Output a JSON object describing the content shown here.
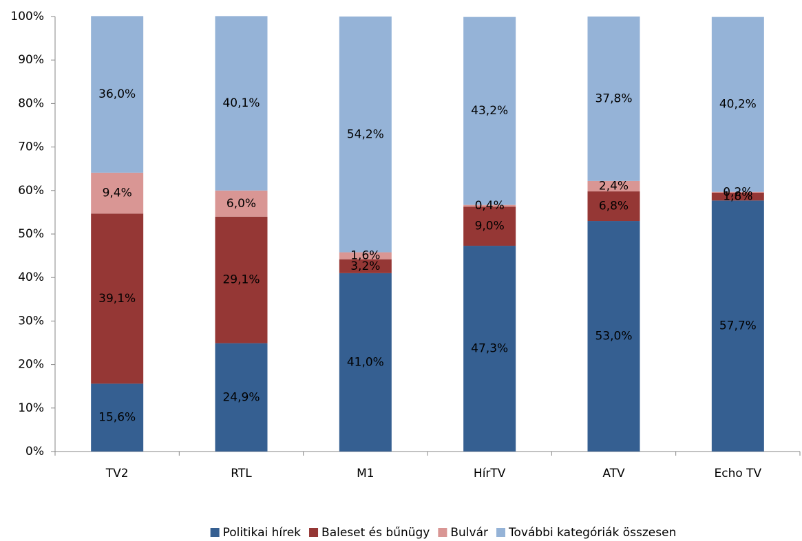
{
  "chart_data": {
    "type": "stacked_bar",
    "categories": [
      "TV2",
      "RTL",
      "M1",
      "HírTV",
      "ATV",
      "Echo TV"
    ],
    "series": [
      {
        "name": "Politikai hírek",
        "color": "#355f91",
        "values": [
          15.6,
          24.9,
          41.0,
          47.3,
          53.0,
          57.7
        ],
        "value_labels": [
          "15,6%",
          "24,9%",
          "41,0%",
          "47,3%",
          "53,0%",
          "57,7%"
        ]
      },
      {
        "name": "Baleset és bűnügy",
        "color": "#953735",
        "values": [
          39.1,
          29.1,
          3.2,
          9.0,
          6.8,
          1.8
        ],
        "value_labels": [
          "39,1%",
          "29,1%",
          "3,2%",
          "9,0%",
          "6,8%",
          "1,8%"
        ]
      },
      {
        "name": "Bulvár",
        "color": "#d99694",
        "values": [
          9.4,
          6.0,
          1.6,
          0.4,
          2.4,
          0.2
        ],
        "value_labels": [
          "9,4%",
          "6,0%",
          "1,6%",
          "0,4%",
          "2,4%",
          "0,2%"
        ]
      },
      {
        "name": "További kategóriák összesen",
        "color": "#95b3d7",
        "values": [
          36.0,
          40.1,
          54.2,
          43.2,
          37.8,
          40.2
        ],
        "value_labels": [
          "36,0%",
          "40,1%",
          "54,2%",
          "43,2%",
          "37,8%",
          "40,2%"
        ]
      }
    ],
    "ylim": [
      0,
      100
    ],
    "yticks": [
      {
        "value": 0,
        "label": "0%"
      },
      {
        "value": 10,
        "label": "10%"
      },
      {
        "value": 20,
        "label": "20%"
      },
      {
        "value": 30,
        "label": "30%"
      },
      {
        "value": 40,
        "label": "40%"
      },
      {
        "value": 50,
        "label": "50%"
      },
      {
        "value": 60,
        "label": "60%"
      },
      {
        "value": 70,
        "label": "70%"
      },
      {
        "value": 80,
        "label": "80%"
      },
      {
        "value": 90,
        "label": "90%"
      },
      {
        "value": 100,
        "label": "100%"
      }
    ],
    "legend": "bottom"
  }
}
